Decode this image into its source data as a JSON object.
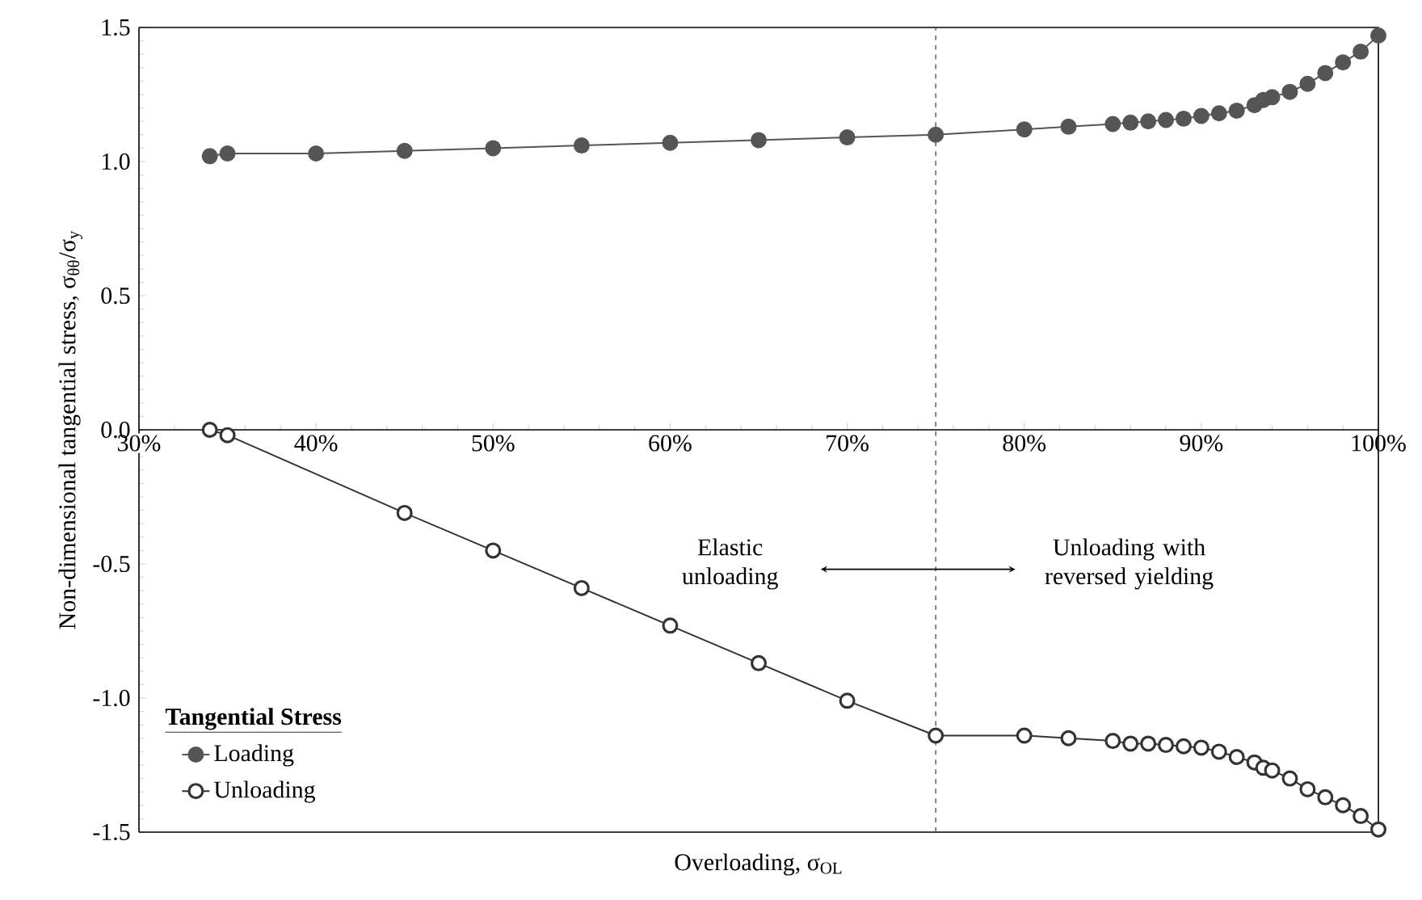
{
  "chart_data": {
    "type": "line",
    "xlabel": "Overloading, σ$_{OL}$",
    "ylabel": "Non-dimensional tangential stress, σ$_{θθ}$/σ$_{y}$",
    "legend_title": "Tangential Stress",
    "legend": "bottom left",
    "marker": "circle",
    "line_style": "solid",
    "series": [
      {
        "name": "Loading",
        "color": "#555555",
        "x": [
          34,
          35,
          40,
          45,
          50,
          55,
          60,
          65,
          70,
          75,
          80,
          82.5,
          85,
          86,
          87,
          88,
          89,
          90,
          91,
          92,
          93,
          93.5,
          94,
          95,
          96,
          97,
          98,
          99,
          100
        ],
        "values": [
          1.02,
          1.03,
          1.03,
          1.04,
          1.05,
          1.06,
          1.07,
          1.08,
          1.09,
          1.1,
          1.12,
          1.13,
          1.14,
          1.145,
          1.15,
          1.155,
          1.16,
          1.17,
          1.18,
          1.19,
          1.21,
          1.23,
          1.24,
          1.26,
          1.29,
          1.33,
          1.37,
          1.41,
          1.47
        ]
      },
      {
        "name": "Unloading",
        "color": "#333333",
        "x": [
          34,
          35,
          45,
          50,
          55,
          60,
          65,
          70,
          75,
          80,
          82.5,
          85,
          86,
          87,
          88,
          89,
          90,
          91,
          92,
          93,
          93.5,
          94,
          95,
          96,
          97,
          98,
          99,
          100
        ],
        "values": [
          0.0,
          -0.02,
          -0.31,
          -0.45,
          -0.59,
          -0.73,
          -0.87,
          -1.01,
          -1.14,
          -1.14,
          -1.15,
          -1.16,
          -1.17,
          -1.17,
          -1.175,
          -1.18,
          -1.185,
          -1.2,
          -1.22,
          -1.24,
          -1.26,
          -1.27,
          -1.3,
          -1.34,
          -1.37,
          -1.4,
          -1.44,
          -1.49
        ]
      }
    ],
    "xlim": [
      30,
      100
    ],
    "xticks": [
      {
        "value": 30,
        "label": "30%"
      },
      {
        "value": 40,
        "label": "40%"
      },
      {
        "value": 50,
        "label": "50%"
      },
      {
        "value": 60,
        "label": "60%"
      },
      {
        "value": 70,
        "label": "70%"
      },
      {
        "value": 80,
        "label": "80%"
      },
      {
        "value": 90,
        "label": "90%"
      },
      {
        "value": 100,
        "label": "100%"
      }
    ],
    "ylim": [
      -1.5,
      1.5
    ],
    "yticks": [
      {
        "value": -1.5,
        "label": "-1.5"
      },
      {
        "value": -1.0,
        "label": "-1.0"
      },
      {
        "value": -0.5,
        "label": "-0.5"
      },
      {
        "value": 0,
        "label": "0.0"
      },
      {
        "value": 0.5,
        "label": "0.5"
      },
      {
        "value": 1.0,
        "label": "1.0"
      },
      {
        "value": 1.5,
        "label": "1.5"
      }
    ],
    "ref_lines": [
      {
        "axis": "x",
        "value": 75,
        "line_style": "dashed",
        "color": "#555555"
      }
    ],
    "annotations": [
      "Elastic unloading",
      "Unloading with reversed yielding"
    ]
  }
}
